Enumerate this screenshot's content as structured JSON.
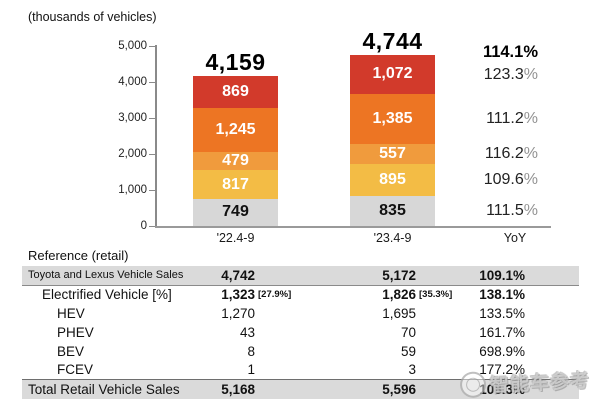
{
  "chart": {
    "units_note": "(thousands of vehicles)",
    "y_ticks": [
      {
        "label": "5,000",
        "value": 5000
      },
      {
        "label": "4,000",
        "value": 4000
      },
      {
        "label": "3,000",
        "value": 3000
      },
      {
        "label": "2,000",
        "value": 2000
      },
      {
        "label": "1,000",
        "value": 1000
      },
      {
        "label": "0",
        "value": 0
      }
    ],
    "x_labels": [
      "'22.4-9",
      "'23.4-9",
      "YoY"
    ]
  },
  "chart_data": {
    "type": "bar",
    "stacked": true,
    "title": "",
    "units_note": "(thousands of vehicles)",
    "categories": [
      "'22.4-9",
      "'23.4-9"
    ],
    "ylim": [
      0,
      5000
    ],
    "grid": false,
    "legend": "none",
    "series_bottom_to_top": [
      {
        "name": "gray-bottom-segment",
        "color": "#d7d7d7",
        "label_color": "#111111",
        "values": [
          749,
          835
        ],
        "labels": [
          "749",
          "835"
        ],
        "yoy": "111.5"
      },
      {
        "name": "amber-segment",
        "color": "#f3bc45",
        "label_color": "#ffffff",
        "values": [
          817,
          895
        ],
        "labels": [
          "817",
          "895"
        ],
        "yoy": "109.6"
      },
      {
        "name": "light-orange-segment",
        "color": "#f09b3d",
        "label_color": "#ffffff",
        "values": [
          479,
          557
        ],
        "labels": [
          "479",
          "557"
        ],
        "yoy": "116.2"
      },
      {
        "name": "dark-orange-segment",
        "color": "#ed7523",
        "label_color": "#ffffff",
        "values": [
          1245,
          1385
        ],
        "labels": [
          "1,245",
          "1,385"
        ],
        "yoy": "111.2"
      },
      {
        "name": "red-segment",
        "color": "#d23a2b",
        "label_color": "#ffffff",
        "values": [
          869,
          1072
        ],
        "labels": [
          "869",
          "1,072"
        ],
        "yoy": "123.3"
      }
    ],
    "totals": {
      "values": [
        4159,
        4744
      ],
      "labels": [
        "4,159",
        "4,744"
      ],
      "yoy": "114.1"
    },
    "yoy_column_header": "YoY"
  },
  "table": {
    "title": "Reference (retail)",
    "columns": [
      "",
      "'22.4-9",
      "'23.4-9",
      "YoY"
    ],
    "rows": [
      {
        "label": "Toyota and Lexus Vehicle Sales",
        "indent": 0,
        "small_label": true,
        "gray": true,
        "bold_values": true,
        "v1": "4,742",
        "v1note": "",
        "v2": "5,172",
        "v2note": "",
        "yoy": "109.1%"
      },
      {
        "label": "Electrified Vehicle [%]",
        "indent": 1,
        "small_label": false,
        "gray": false,
        "bold_values": true,
        "v1": "1,323",
        "v1note": "[27.9%]",
        "v2": "1,826",
        "v2note": "[35.3%]",
        "yoy": "138.1%"
      },
      {
        "label": "HEV",
        "indent": 2,
        "small_label": false,
        "gray": false,
        "bold_values": false,
        "v1": "1,270",
        "v1note": "",
        "v2": "1,695",
        "v2note": "",
        "yoy": "133.5%"
      },
      {
        "label": "PHEV",
        "indent": 2,
        "small_label": false,
        "gray": false,
        "bold_values": false,
        "v1": "43",
        "v1note": "",
        "v2": "70",
        "v2note": "",
        "yoy": "161.7%"
      },
      {
        "label": "BEV",
        "indent": 2,
        "small_label": false,
        "gray": false,
        "bold_values": false,
        "v1": "8",
        "v1note": "",
        "v2": "59",
        "v2note": "",
        "yoy": "698.9%"
      },
      {
        "label": "FCEV",
        "indent": 2,
        "small_label": false,
        "gray": false,
        "bold_values": false,
        "v1": "1",
        "v1note": "",
        "v2": "3",
        "v2note": "",
        "yoy": "177.2%"
      },
      {
        "label": "Total Retail Vehicle Sales",
        "indent": 0,
        "small_label": false,
        "gray": true,
        "bold_values": true,
        "v1": "5,168",
        "v1note": "",
        "v2": "5,596",
        "v2note": "",
        "yoy": "108.3%"
      }
    ]
  },
  "watermark": {
    "text": "智能车参考"
  }
}
